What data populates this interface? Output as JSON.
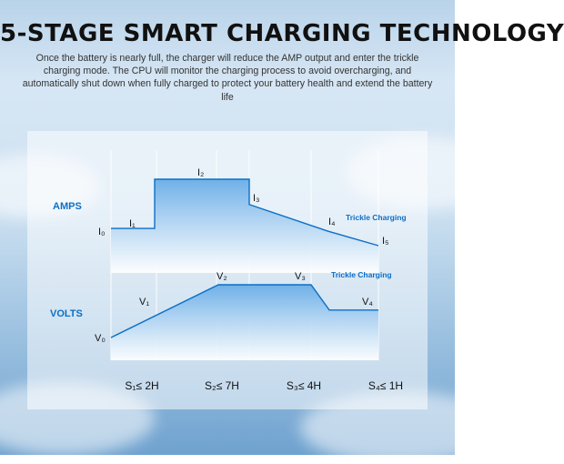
{
  "title": "5-STAGE SMART CHARGING TECHNOLOGY",
  "description": "Once the battery is nearly full, the charger will reduce the AMP output and enter the trickle charging mode. The CPU will monitor the charging process to avoid overcharging, and automatically shut down when fully charged to protect your battery health and extend the battery life",
  "colors": {
    "accent": "#0c6fc6",
    "fill_top": "#6fb0e8",
    "fill_bottom": "#ffffff",
    "text": "#111111"
  },
  "chart": {
    "amps_label": "AMPS",
    "volts_label": "VOLTS",
    "trickle_label_amps": "Trickle Charging",
    "trickle_label_volts": "Trickle Charging",
    "amps_points": [
      {
        "label": "I₀",
        "value": 0.26
      },
      {
        "label": "I₁",
        "value": 0.26
      },
      {
        "label": "I₂",
        "value": 1.0
      },
      {
        "label": "I₃",
        "value": 0.62
      },
      {
        "label": "I₄",
        "value": 0.22
      },
      {
        "label": "I₅",
        "value": 0.0
      }
    ],
    "volts_points": [
      {
        "label": "V₀",
        "value": 0.0
      },
      {
        "label": "V₁",
        "value": 0.45
      },
      {
        "label": "V₂",
        "value": 1.0
      },
      {
        "label": "V₃",
        "value": 1.0
      },
      {
        "label": "V₄",
        "value": 0.52
      }
    ],
    "stages": [
      {
        "label": "S₁≤ 2H"
      },
      {
        "label": "S₂≤ 7H"
      },
      {
        "label": "S₃≤ 4H"
      },
      {
        "label": "S₄≤ 1H"
      }
    ]
  }
}
